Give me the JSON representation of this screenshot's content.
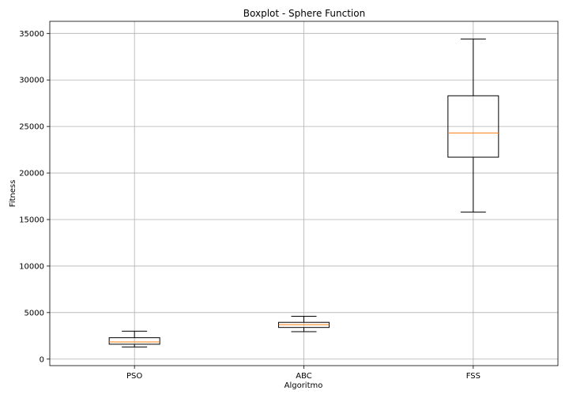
{
  "chart_data": {
    "type": "boxplot",
    "title": "Boxplot - Sphere Function",
    "xlabel": "Algoritmo",
    "ylabel": "Fitness",
    "categories": [
      "PSO",
      "ABC",
      "FSS"
    ],
    "boxes": [
      {
        "label": "PSO",
        "whisker_low": 1300,
        "q1": 1600,
        "median": 1850,
        "q3": 2300,
        "whisker_high": 3000
      },
      {
        "label": "ABC",
        "whisker_low": 2950,
        "q1": 3400,
        "median": 3700,
        "q3": 3950,
        "whisker_high": 4600
      },
      {
        "label": "FSS",
        "whisker_low": 15800,
        "q1": 21700,
        "median": 24300,
        "q3": 28300,
        "whisker_high": 34400
      }
    ],
    "yticks": [
      0,
      5000,
      10000,
      15000,
      20000,
      25000,
      30000,
      35000
    ],
    "ylim": [
      -700,
      36300
    ],
    "grid": true,
    "colors": {
      "box": "#000000",
      "median": "#ff7f0e",
      "grid": "#b0b0b0"
    }
  }
}
